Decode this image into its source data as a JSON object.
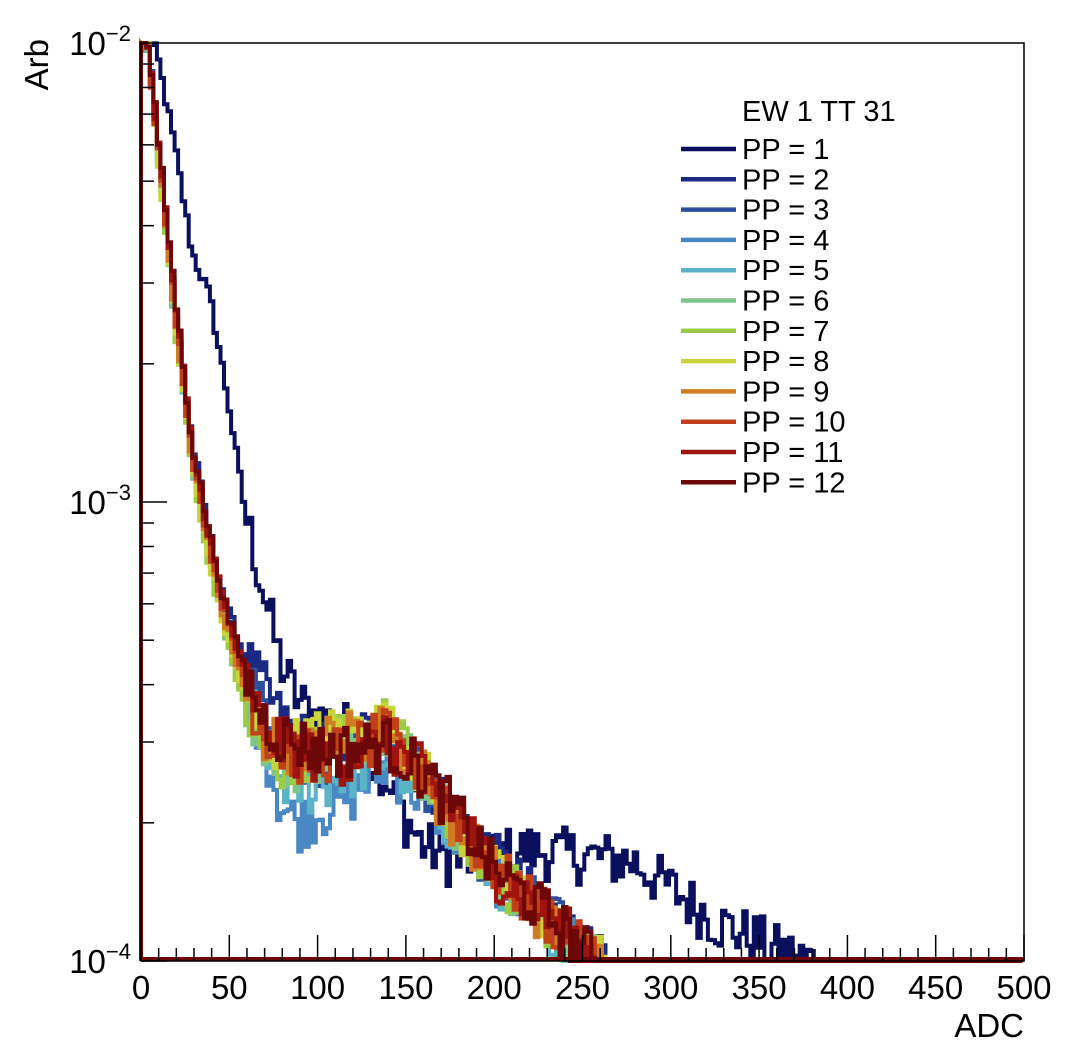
{
  "chart_data": {
    "type": "line",
    "xlabel": "ADC",
    "ylabel": "Arb",
    "xlim": [
      0,
      500
    ],
    "ylim": [
      0.0001,
      0.01
    ],
    "y_scale": "log",
    "x_ticks": [
      "0",
      "50",
      "100",
      "150",
      "200",
      "250",
      "300",
      "350",
      "400",
      "450",
      "500"
    ],
    "y_ticks": [
      {
        "value": 0.0001,
        "base": "10",
        "exp": "−4"
      },
      {
        "value": 0.001,
        "base": "10",
        "exp": "−3"
      },
      {
        "value": 0.01,
        "base": "10",
        "exp": "−2"
      }
    ],
    "legend": {
      "title": "EW 1 TT 31",
      "position": "top-right"
    },
    "grid": false,
    "series": [
      {
        "name": "PP = 1",
        "color": "#0a0f5e",
        "x": [
          5,
          10,
          20,
          30,
          40,
          50,
          60,
          70,
          80,
          90,
          100,
          120,
          140,
          160,
          180,
          200,
          220,
          250,
          280,
          300,
          330,
          350,
          360,
          380
        ],
        "y": [
          0.01,
          0.0095,
          0.006,
          0.0035,
          0.0028,
          0.0017,
          0.00095,
          0.00065,
          0.00045,
          0.00037,
          0.00034,
          0.00032,
          0.00024,
          0.00018,
          0.000165,
          0.00017,
          0.000175,
          0.00017,
          0.000165,
          0.000145,
          0.00012,
          0.000112,
          0.000106,
          0.0001
        ]
      },
      {
        "name": "PP = 2",
        "color": "#1a2a82",
        "x": [
          5,
          10,
          20,
          30,
          40,
          50,
          60,
          70,
          80,
          90,
          100,
          120,
          140,
          160,
          180,
          200,
          220,
          240,
          250,
          260
        ],
        "y": [
          0.01,
          0.0065,
          0.0028,
          0.00135,
          0.00085,
          0.00058,
          0.00046,
          0.0004,
          0.00034,
          0.00031,
          0.0003,
          0.00031,
          0.00032,
          0.00026,
          0.00021,
          0.00017,
          0.000142,
          0.00012,
          0.000108,
          0.0001
        ]
      },
      {
        "name": "PP = 3",
        "color": "#2b50a0",
        "x": [
          5,
          10,
          20,
          30,
          40,
          50,
          60,
          70,
          80,
          90,
          100,
          120,
          140,
          160,
          180,
          200,
          220,
          240,
          250,
          260
        ],
        "y": [
          0.01,
          0.0064,
          0.0027,
          0.0013,
          0.00082,
          0.00055,
          0.00043,
          0.00036,
          0.00031,
          0.00028,
          0.00027,
          0.00028,
          0.00031,
          0.00025,
          0.0002,
          0.00016,
          0.000138,
          0.000118,
          0.000106,
          0.0001
        ]
      },
      {
        "name": "PP = 4",
        "color": "#4a88c4",
        "x": [
          5,
          10,
          20,
          30,
          40,
          50,
          60,
          70,
          80,
          90,
          100,
          120,
          140,
          160,
          180,
          200,
          220,
          240,
          250,
          260
        ],
        "y": [
          0.01,
          0.0062,
          0.0026,
          0.00125,
          0.00078,
          0.00052,
          0.0004,
          0.00031,
          0.00022,
          0.0002,
          0.00021,
          0.00023,
          0.00027,
          0.00023,
          0.00019,
          0.000155,
          0.000135,
          0.000115,
          0.000105,
          0.0001
        ]
      },
      {
        "name": "PP = 5",
        "color": "#5ab3c7",
        "x": [
          5,
          10,
          20,
          30,
          40,
          50,
          60,
          70,
          80,
          90,
          100,
          120,
          140,
          160,
          180,
          200,
          220,
          240,
          250,
          260
        ],
        "y": [
          0.01,
          0.0062,
          0.0026,
          0.00125,
          0.00077,
          0.00051,
          0.00039,
          0.00031,
          0.00025,
          0.00024,
          0.00024,
          0.00026,
          0.00028,
          0.00024,
          0.00019,
          0.000155,
          0.000133,
          0.000113,
          0.000104,
          0.0001
        ]
      },
      {
        "name": "PP = 6",
        "color": "#7dc48c",
        "x": [
          5,
          10,
          20,
          30,
          40,
          50,
          60,
          70,
          80,
          90,
          100,
          120,
          140,
          160,
          180,
          200,
          220,
          240,
          250,
          260
        ],
        "y": [
          0.01,
          0.0061,
          0.0025,
          0.0012,
          0.00075,
          0.0005,
          0.00038,
          0.00031,
          0.00027,
          0.00027,
          0.00028,
          0.0003,
          0.00033,
          0.00026,
          0.0002,
          0.000158,
          0.000135,
          0.000115,
          0.000105,
          0.0001
        ]
      },
      {
        "name": "PP = 7",
        "color": "#9ccc46",
        "x": [
          5,
          10,
          20,
          30,
          40,
          50,
          60,
          70,
          80,
          90,
          100,
          120,
          140,
          160,
          180,
          200,
          220,
          240,
          250,
          260
        ],
        "y": [
          0.01,
          0.006,
          0.0025,
          0.00118,
          0.00073,
          0.00049,
          0.00037,
          0.0003,
          0.00027,
          0.00028,
          0.00029,
          0.00031,
          0.00033,
          0.00026,
          0.0002,
          0.000158,
          0.000134,
          0.000114,
          0.000104,
          0.0001
        ]
      },
      {
        "name": "PP = 8",
        "color": "#c8d43a",
        "x": [
          5,
          10,
          20,
          30,
          40,
          50,
          60,
          70,
          80,
          90,
          100,
          120,
          140,
          160,
          180,
          200,
          220,
          240,
          250,
          260
        ],
        "y": [
          0.01,
          0.006,
          0.0025,
          0.0012,
          0.00074,
          0.0005,
          0.00038,
          0.00031,
          0.00029,
          0.0003,
          0.00031,
          0.00032,
          0.00033,
          0.00026,
          0.0002,
          0.000158,
          0.000134,
          0.000114,
          0.000104,
          0.0001
        ]
      },
      {
        "name": "PP = 9",
        "color": "#d07c22",
        "x": [
          5,
          10,
          20,
          30,
          40,
          50,
          60,
          70,
          80,
          90,
          100,
          120,
          140,
          160,
          180,
          200,
          220,
          240,
          250,
          260
        ],
        "y": [
          0.01,
          0.0062,
          0.0026,
          0.00124,
          0.00077,
          0.00052,
          0.0004,
          0.00032,
          0.00029,
          0.00029,
          0.0003,
          0.00031,
          0.00032,
          0.00026,
          0.0002,
          0.000158,
          0.000135,
          0.000115,
          0.000105,
          0.0001
        ]
      },
      {
        "name": "PP = 10",
        "color": "#c0401a",
        "x": [
          5,
          10,
          20,
          30,
          40,
          50,
          60,
          70,
          80,
          90,
          100,
          120,
          140,
          160,
          180,
          200,
          220,
          240,
          250,
          260
        ],
        "y": [
          0.01,
          0.0063,
          0.0027,
          0.00128,
          0.0008,
          0.00054,
          0.00041,
          0.00032,
          0.00029,
          0.00028,
          0.00028,
          0.00029,
          0.00031,
          0.00026,
          0.00021,
          0.00016,
          0.000137,
          0.000117,
          0.000106,
          0.0001
        ]
      },
      {
        "name": "PP = 11",
        "color": "#a01410",
        "x": [
          5,
          10,
          20,
          30,
          40,
          50,
          60,
          70,
          80,
          90,
          100,
          120,
          140,
          160,
          180,
          200,
          220,
          240,
          250,
          260
        ],
        "y": [
          0.01,
          0.0065,
          0.0028,
          0.00132,
          0.00083,
          0.00056,
          0.00042,
          0.00033,
          0.0003,
          0.00029,
          0.00028,
          0.00028,
          0.0003,
          0.00026,
          0.00021,
          0.00016,
          0.000138,
          0.000118,
          0.000107,
          0.0001
        ]
      },
      {
        "name": "PP = 12",
        "color": "#6e0808",
        "x": [
          5,
          10,
          20,
          30,
          40,
          50,
          60,
          70,
          80,
          90,
          100,
          120,
          140,
          160,
          180,
          200,
          220,
          240,
          250,
          260
        ],
        "y": [
          0.01,
          0.0066,
          0.0029,
          0.00135,
          0.00085,
          0.00057,
          0.00043,
          0.00034,
          0.00031,
          0.0003,
          0.00029,
          0.00029,
          0.0003,
          0.00026,
          0.00021,
          0.00016,
          0.000138,
          0.000118,
          0.000107,
          0.0001
        ]
      }
    ]
  }
}
